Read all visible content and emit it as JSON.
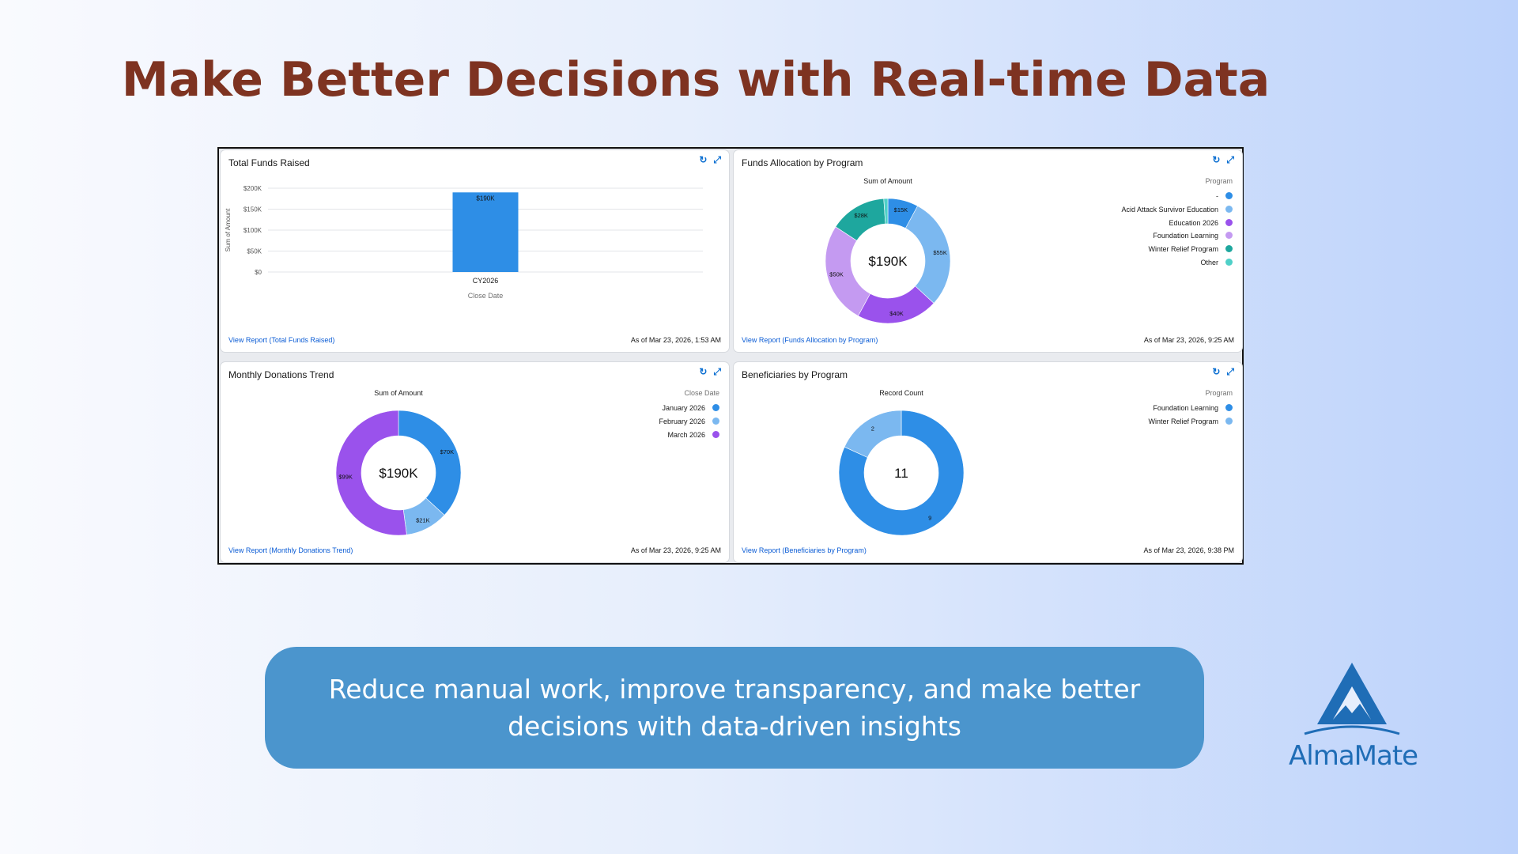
{
  "headline": "Make Better Decisions with Real-time Data",
  "tagline": "Reduce manual work, improve transparency, and make better decisions with data-driven insights",
  "logo": {
    "text": "AlmaMate",
    "icon": "mountain-triangle-logo",
    "color": "#1f6db6"
  },
  "colors": {
    "headline": "#7e3321",
    "tagline_bg": "#4b95cd",
    "link": "#0b5cd5",
    "series": [
      "#2e8ee6",
      "#7bb8f0",
      "#9a52ec",
      "#c49af1",
      "#1ea79e",
      "#4fd0c8"
    ]
  },
  "panels": {
    "funds_raised": {
      "title": "Total Funds Raised",
      "link": "View Report (Total Funds Raised)",
      "stamp": "As of Mar 23, 2026, 1:53 AM",
      "chart_data": {
        "type": "bar",
        "categories": [
          "CY2026"
        ],
        "values": [
          190
        ],
        "value_labels": [
          "$190K"
        ],
        "yticks": [
          "$0",
          "$50K",
          "$100K",
          "$150K",
          "$200K"
        ],
        "ytick_values": [
          0,
          50,
          100,
          150,
          200
        ],
        "ylim": [
          0,
          200
        ],
        "xlabel": "Close Date",
        "ylabel": "Sum of Amount",
        "grid": true
      }
    },
    "allocation": {
      "title": "Funds Allocation by Program",
      "link": "View Report (Funds Allocation by Program)",
      "stamp": "As of Mar 23, 2026, 9:25 AM",
      "chart_data": {
        "type": "pie",
        "donut": true,
        "subtitle": "Sum of Amount",
        "center_label": "$190K",
        "legend_title": "Program",
        "legend_position": "top-right",
        "slices": [
          {
            "name": "-",
            "value": 15,
            "label": "$15K",
            "color": "#2e8ee6"
          },
          {
            "name": "Acid Attack Survivor Education",
            "value": 55,
            "label": "$55K",
            "color": "#7bb8f0"
          },
          {
            "name": "Education 2026",
            "value": 40,
            "label": "$40K",
            "color": "#9a52ec"
          },
          {
            "name": "Foundation Learning",
            "value": 50,
            "label": "$50K",
            "color": "#c49af1"
          },
          {
            "name": "Winter Relief Program",
            "value": 28,
            "label": "$28K",
            "color": "#1ea79e"
          },
          {
            "name": "Other",
            "value": 2,
            "label": "",
            "color": "#4fd0c8"
          }
        ]
      }
    },
    "monthly": {
      "title": "Monthly Donations Trend",
      "link": "View Report (Monthly Donations Trend)",
      "stamp": "As of Mar 23, 2026, 9:25 AM",
      "chart_data": {
        "type": "pie",
        "donut": true,
        "subtitle": "Sum of Amount",
        "center_label": "$190K",
        "legend_title": "Close Date",
        "legend_position": "top-right",
        "slices": [
          {
            "name": "January 2026",
            "value": 70,
            "label": "$70K",
            "color": "#2e8ee6"
          },
          {
            "name": "February 2026",
            "value": 21,
            "label": "$21K",
            "color": "#7bb8f0"
          },
          {
            "name": "March 2026",
            "value": 99,
            "label": "$99K",
            "color": "#9a52ec"
          }
        ]
      }
    },
    "beneficiaries": {
      "title": "Beneficiaries by Program",
      "link": "View Report (Beneficiaries by Program)",
      "stamp": "As of Mar 23, 2026, 9:38 PM",
      "chart_data": {
        "type": "pie",
        "donut": true,
        "subtitle": "Record Count",
        "center_label": "11",
        "legend_title": "Program",
        "legend_position": "top-right",
        "slices": [
          {
            "name": "Foundation Learning",
            "value": 9,
            "label": "9",
            "color": "#2e8ee6"
          },
          {
            "name": "Winter Relief Program",
            "value": 2,
            "label": "2",
            "color": "#7bb8f0"
          }
        ]
      }
    }
  },
  "icons": {
    "refresh": "refresh-icon",
    "expand": "expand-icon"
  }
}
